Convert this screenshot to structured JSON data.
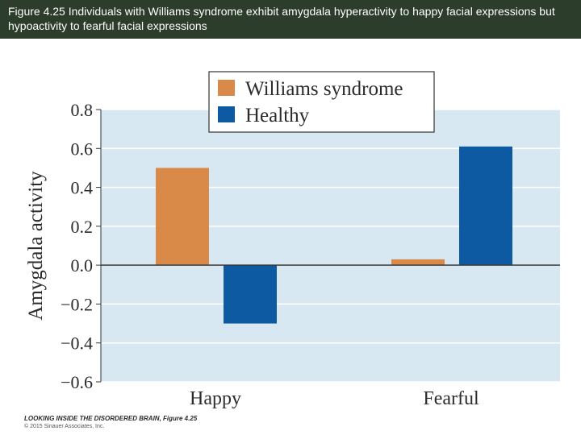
{
  "caption": "Figure 4.25 Individuals with Williams syndrome exhibit amygdala hyperactivity to happy facial expressions but hypoactivity to fearful facial expressions",
  "footer": {
    "source": "LOOKING INSIDE THE DISORDERED BRAIN, Figure 4.25",
    "copyright": "© 2015 Sinauer Associates, Inc."
  },
  "colors": {
    "banner": "#2c3d2c",
    "plot_bg": "#d7e8f3",
    "gridline": "#ffffff",
    "williams": "#d98a48",
    "healthy": "#0d5aa2"
  },
  "chart_data": {
    "type": "bar",
    "categories": [
      "Happy",
      "Fearful"
    ],
    "series": [
      {
        "name": "Williams syndrome",
        "values": [
          0.5,
          0.03
        ]
      },
      {
        "name": "Healthy",
        "values": [
          -0.3,
          0.61
        ]
      }
    ],
    "ylabel": "Amygdala activity",
    "xlabel": "",
    "ylim": [
      -0.6,
      0.8
    ],
    "yticks": [
      0.8,
      0.6,
      0.4,
      0.2,
      0.0,
      -0.2,
      -0.4,
      -0.6
    ],
    "ytick_labels": [
      "0.8",
      "0.6",
      "0.4",
      "0.2",
      "0.0",
      "−0.2",
      "−0.4",
      "−0.6"
    ],
    "grid": true,
    "legend_position": "top-center"
  }
}
